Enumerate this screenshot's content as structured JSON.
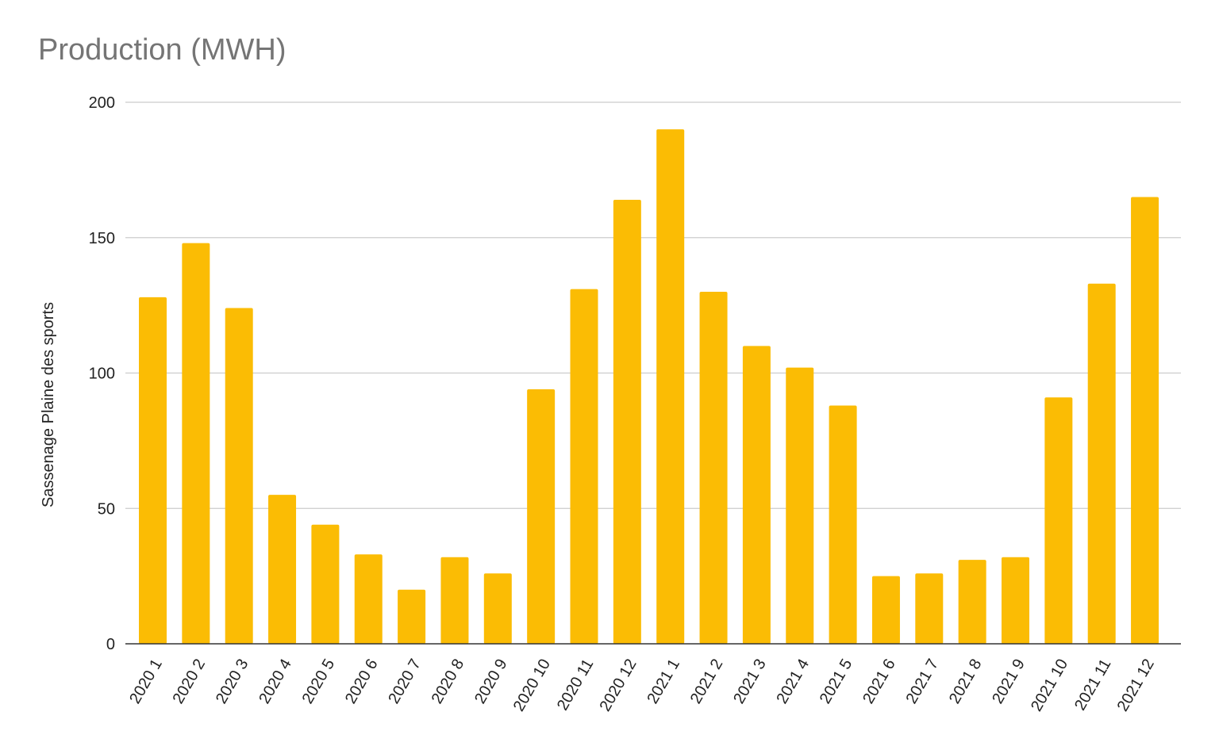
{
  "chart_data": {
    "type": "bar",
    "title": "Production (MWH)",
    "xlabel": "",
    "ylabel": "Sassenage Plaine des sports",
    "ylim": [
      0,
      200
    ],
    "yticks": [
      0,
      50,
      100,
      150,
      200
    ],
    "grid": true,
    "legend": "none",
    "bar_color": "#FBBC04",
    "categories": [
      "2020 1",
      "2020 2",
      "2020 3",
      "2020 4",
      "2020 5",
      "2020 6",
      "2020 7",
      "2020 8",
      "2020 9",
      "2020 10",
      "2020 11",
      "2020 12",
      "2021 1",
      "2021 2",
      "2021 3",
      "2021 4",
      "2021 5",
      "2021 6",
      "2021 7",
      "2021 8",
      "2021 9",
      "2021 10",
      "2021 11",
      "2021 12"
    ],
    "values": [
      128,
      148,
      124,
      55,
      44,
      33,
      20,
      32,
      26,
      94,
      131,
      164,
      190,
      130,
      110,
      102,
      88,
      25,
      26,
      31,
      32,
      91,
      133,
      165
    ]
  }
}
